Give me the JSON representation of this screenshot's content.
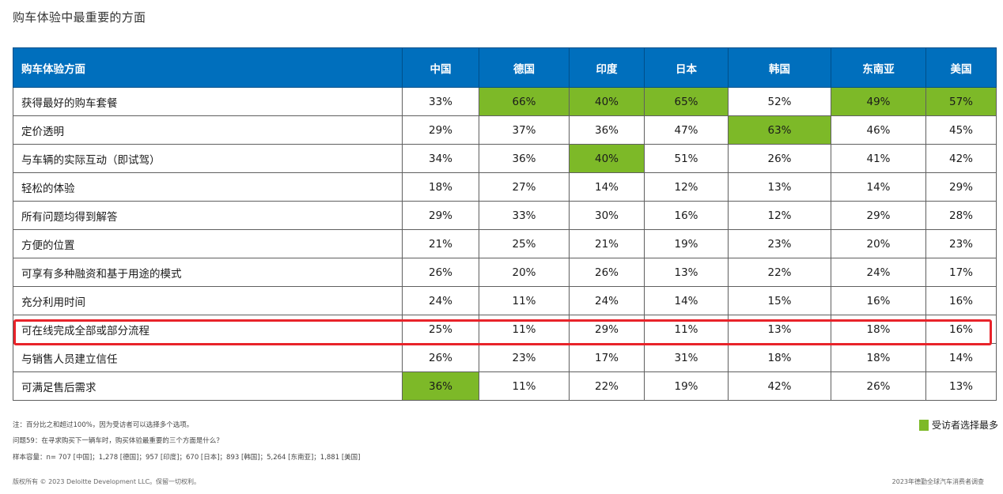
{
  "title": "购车体验中最重要的方面",
  "table": {
    "headers": [
      "购车体验方面",
      "中国",
      "德国",
      "印度",
      "日本",
      "韩国",
      "东南亚",
      "美国"
    ],
    "rows": [
      {
        "aspect": "获得最好的购车套餐",
        "values": [
          "33%",
          "66%",
          "40%",
          "65%",
          "52%",
          "49%",
          "57%"
        ],
        "highlight": [
          false,
          true,
          true,
          true,
          false,
          true,
          true
        ]
      },
      {
        "aspect": "定价透明",
        "values": [
          "29%",
          "37%",
          "36%",
          "47%",
          "63%",
          "46%",
          "45%"
        ],
        "highlight": [
          false,
          false,
          false,
          false,
          true,
          false,
          false
        ]
      },
      {
        "aspect": "与车辆的实际互动（即试驾）",
        "values": [
          "34%",
          "36%",
          "40%",
          "51%",
          "26%",
          "41%",
          "42%"
        ],
        "highlight": [
          false,
          false,
          true,
          false,
          false,
          false,
          false
        ]
      },
      {
        "aspect": "轻松的体验",
        "values": [
          "18%",
          "27%",
          "14%",
          "12%",
          "13%",
          "14%",
          "29%"
        ],
        "highlight": [
          false,
          false,
          false,
          false,
          false,
          false,
          false
        ]
      },
      {
        "aspect": "所有问题均得到解答",
        "values": [
          "29%",
          "33%",
          "30%",
          "16%",
          "12%",
          "29%",
          "28%"
        ],
        "highlight": [
          false,
          false,
          false,
          false,
          false,
          false,
          false
        ]
      },
      {
        "aspect": "方便的位置",
        "values": [
          "21%",
          "25%",
          "21%",
          "19%",
          "23%",
          "20%",
          "23%"
        ],
        "highlight": [
          false,
          false,
          false,
          false,
          false,
          false,
          false
        ]
      },
      {
        "aspect": "可享有多种融资和基于用途的模式",
        "values": [
          "26%",
          "20%",
          "26%",
          "13%",
          "22%",
          "24%",
          "17%"
        ],
        "highlight": [
          false,
          false,
          false,
          false,
          false,
          false,
          false
        ]
      },
      {
        "aspect": "充分利用时间",
        "values": [
          "24%",
          "11%",
          "24%",
          "14%",
          "15%",
          "16%",
          "16%"
        ],
        "highlight": [
          false,
          false,
          false,
          false,
          false,
          false,
          false
        ]
      },
      {
        "aspect": "可在线完成全部或部分流程",
        "values": [
          "25%",
          "11%",
          "29%",
          "11%",
          "13%",
          "18%",
          "16%"
        ],
        "highlight": [
          false,
          false,
          false,
          false,
          false,
          false,
          false
        ]
      },
      {
        "aspect": "与销售人员建立信任",
        "values": [
          "26%",
          "23%",
          "17%",
          "31%",
          "18%",
          "18%",
          "14%"
        ],
        "highlight": [
          false,
          false,
          false,
          false,
          false,
          false,
          false
        ]
      },
      {
        "aspect": "可满足售后需求",
        "values": [
          "36%",
          "11%",
          "22%",
          "19%",
          "42%",
          "26%",
          "13%"
        ],
        "highlight": [
          true,
          false,
          false,
          false,
          false,
          false,
          false
        ]
      }
    ],
    "framed_row_index": 8
  },
  "highlight_color": "#7db928",
  "header_color": "#006fbd",
  "frame_color": "#e8232a",
  "legend": "受访者选择最多",
  "notes": [
    "注：百分比之和超过100%，因为受访者可以选择多个选项。",
    "问题59：在寻求购买下一辆车时，购买体验最重要的三个方面是什么？",
    "样本容量：n= 707 [中国]；1,278 [德国]；957 [印度]；670 [日本]；893 [韩国]；5,264 [东南亚]；1,881 [美国]"
  ],
  "footer": {
    "copyright": "版权所有 © 2023 Deloitte Development LLC。保留一切权利。",
    "source": "2023年德勤全球汽车消费者调查"
  }
}
